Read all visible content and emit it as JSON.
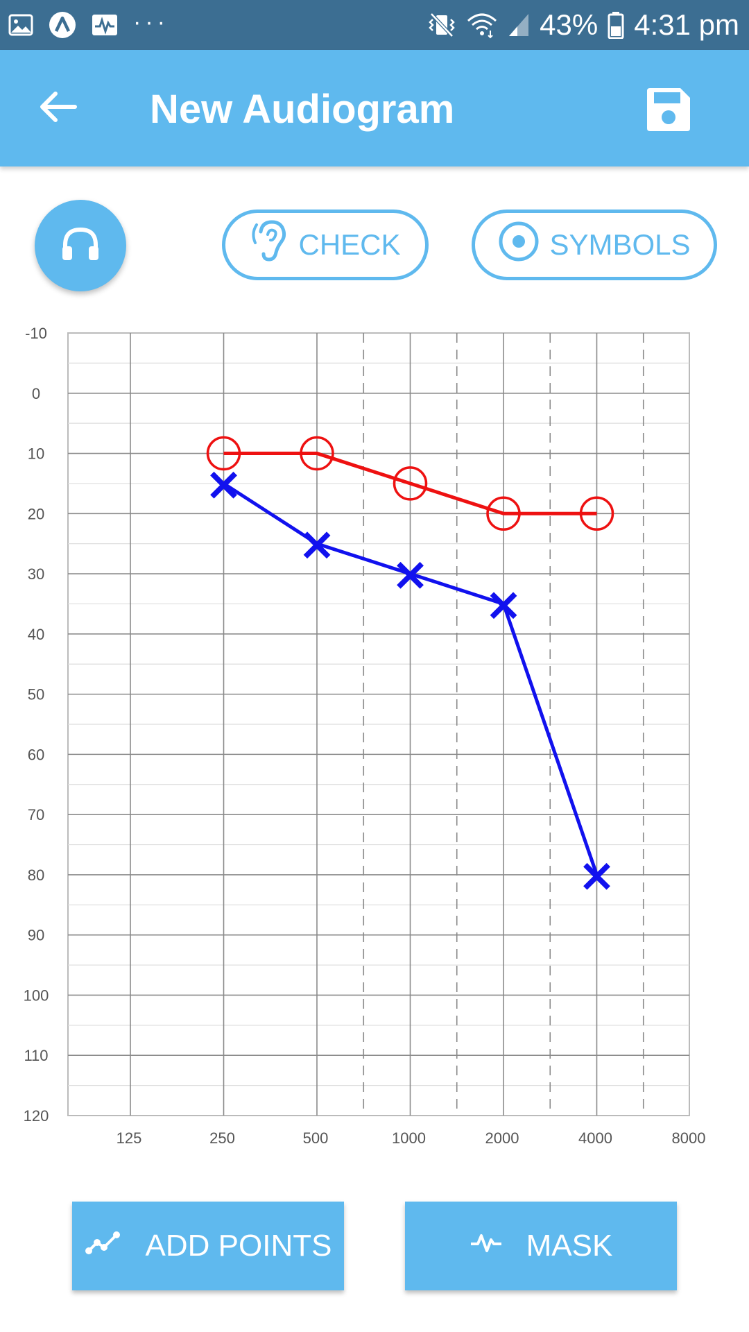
{
  "status_bar": {
    "battery": "43%",
    "time": "4:31 pm",
    "overflow": "···",
    "icons": [
      "image-icon",
      "a-icon",
      "activity-icon",
      "vibrate-icon",
      "wifi-icon",
      "signal-icon",
      "battery-icon"
    ]
  },
  "app_bar": {
    "title": "New Audiogram",
    "back_icon": "arrow-left-icon",
    "save_icon": "save-icon"
  },
  "toolbar": {
    "headphone_icon": "headphones-icon",
    "check_label": "CHECK",
    "symbols_label": "SYMBOLS"
  },
  "actions": {
    "add_points_label": "ADD POINTS",
    "mask_label": "MASK"
  },
  "colors": {
    "accent": "#5fb9ee",
    "status_bar": "#3c6e92",
    "right_ear": "#ee1111",
    "left_ear": "#1111ee"
  },
  "chart_data": {
    "type": "line",
    "categories": [
      "125",
      "250",
      "500",
      "1000",
      "2000",
      "4000",
      "8000"
    ],
    "y_ticks": [
      "-10",
      "0",
      "10",
      "20",
      "30",
      "40",
      "50",
      "60",
      "70",
      "80",
      "90",
      "100",
      "110",
      "120"
    ],
    "ylim": [
      -10,
      120
    ],
    "y_inverted": true,
    "grid": true,
    "series": [
      {
        "marker": "circle",
        "color": "#ee1111",
        "x": [
          "250",
          "500",
          "1000",
          "2000",
          "4000"
        ],
        "values": [
          10,
          10,
          15,
          20,
          20
        ]
      },
      {
        "marker": "x",
        "color": "#1111ee",
        "x": [
          "250",
          "500",
          "1000",
          "2000",
          "4000"
        ],
        "values": [
          15,
          25,
          30,
          35,
          80
        ]
      }
    ]
  }
}
